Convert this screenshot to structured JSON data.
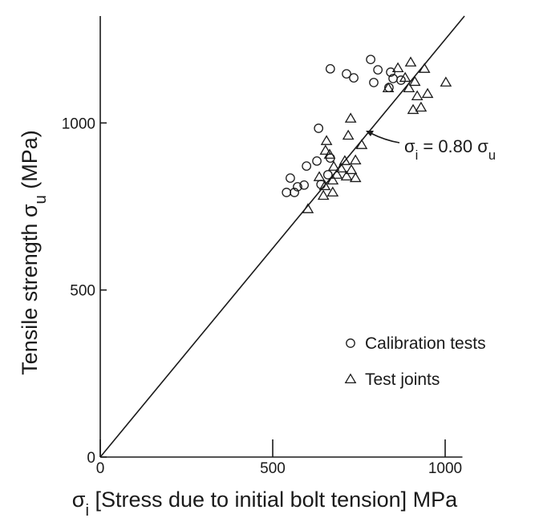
{
  "chart_data": {
    "type": "scatter",
    "xlabel": [
      "σ",
      "i",
      " [Stress due to initial bolt tension] MPa"
    ],
    "ylabel": [
      "Tensile strength σ",
      "u",
      " (MPa)"
    ],
    "xlim": [
      0,
      1050
    ],
    "ylim": [
      0,
      1320
    ],
    "xticks": [
      0,
      500,
      1000
    ],
    "yticks": [
      0,
      500,
      1000
    ],
    "fit_line": {
      "ratio": 0.8,
      "label": [
        "σ",
        "i",
        " = 0.80 σ",
        "u"
      ]
    },
    "legend": "lower right",
    "series": [
      {
        "name": "Calibration tests",
        "marker": "circle",
        "color": "#1a1a1a",
        "x": [
          540,
          563,
          551,
          572,
          591,
          598,
          628,
          633,
          667,
          660,
          640,
          667,
          714,
          735,
          784,
          793,
          805,
          842,
          849,
          837,
          872
        ],
        "values": [
          792,
          792,
          835,
          809,
          814,
          871,
          886,
          984,
          895,
          845,
          816,
          1162,
          1147,
          1135,
          1190,
          1121,
          1159,
          1152,
          1133,
          1106,
          1128
        ]
      },
      {
        "name": "Test joints",
        "marker": "triangle",
        "color": "#1a1a1a",
        "x": [
          602,
          647,
          635,
          651,
          674,
          653,
          656,
          665,
          674,
          686,
          698,
          709,
          714,
          728,
          740,
          740,
          726,
          719,
          758,
          863,
          884,
          900,
          912,
          895,
          940,
          919,
          907,
          930,
          949,
          1002,
          835,
          677
        ],
        "values": [
          742,
          782,
          838,
          811,
          792,
          917,
          946,
          905,
          828,
          845,
          864,
          886,
          840,
          859,
          835,
          888,
          1013,
          962,
          934,
          1164,
          1135,
          1181,
          1123,
          1104,
          1162,
          1080,
          1039,
          1046,
          1087,
          1121,
          1104,
          869
        ]
      }
    ]
  }
}
